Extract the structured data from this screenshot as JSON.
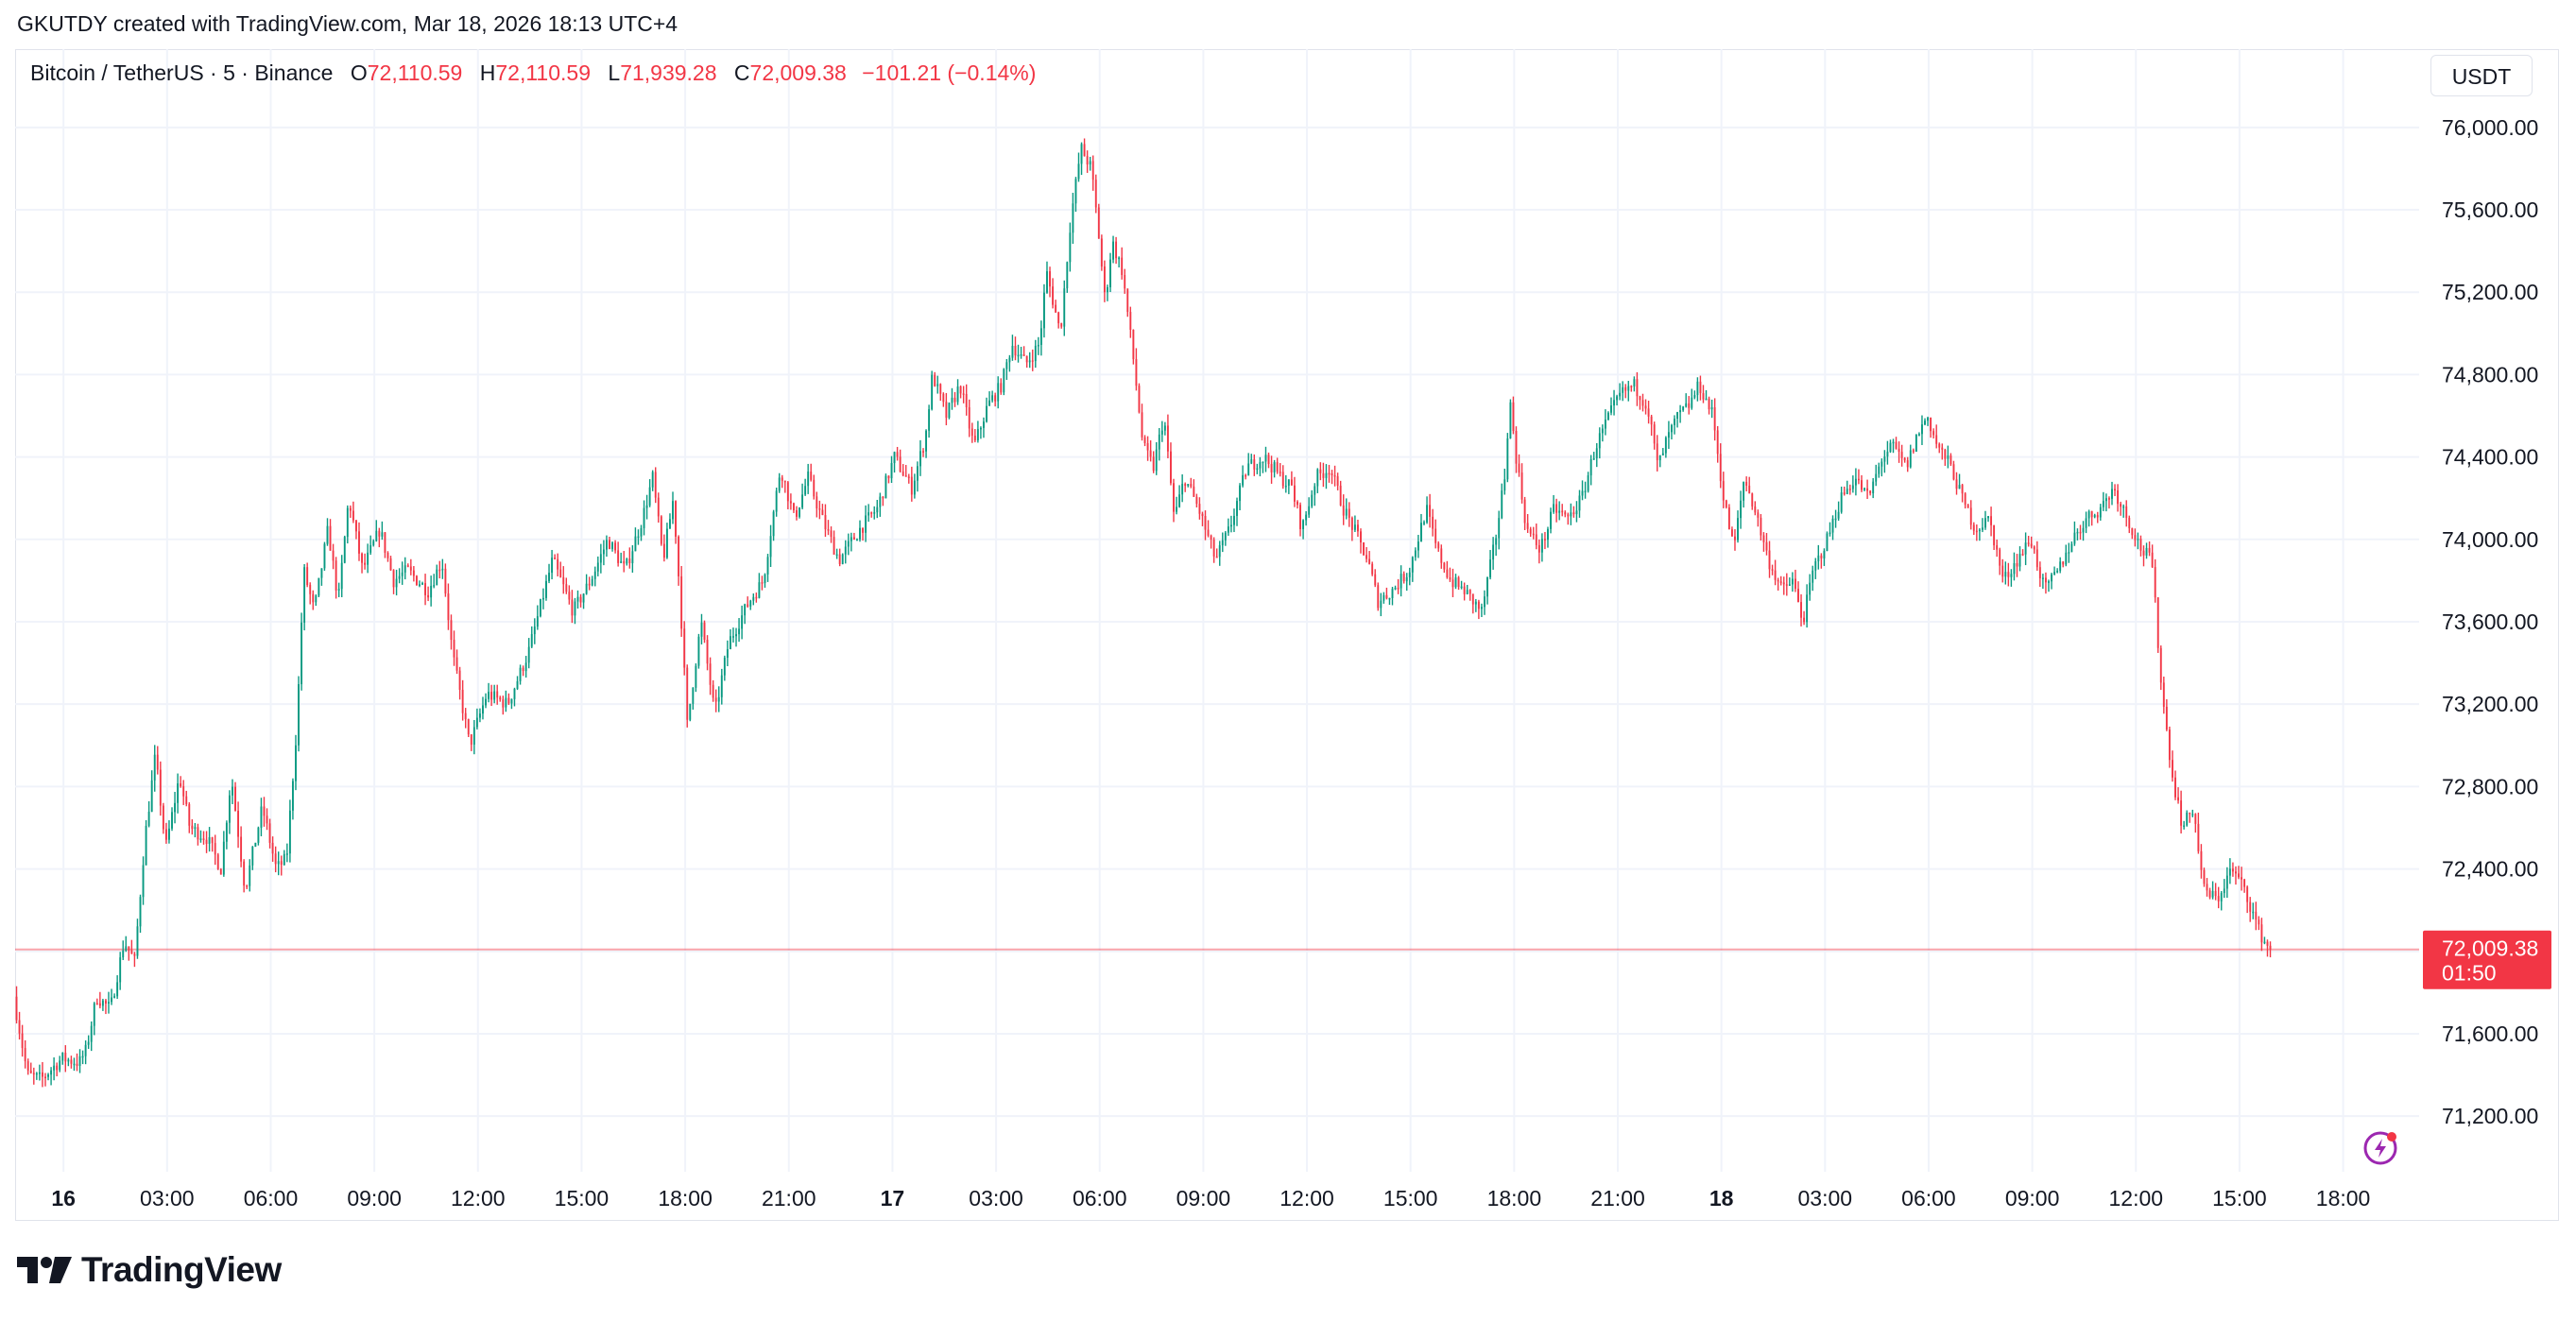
{
  "header": {
    "credit": "GKUTDY created with TradingView.com, Mar 18, 2026 18:13 UTC+4"
  },
  "legend": {
    "symbol": "Bitcoin / TetherUS · 5 · Binance",
    "o_label": "O",
    "open": "72,110.59",
    "h_label": "H",
    "high": "72,110.59",
    "l_label": "L",
    "low": "71,939.28",
    "c_label": "C",
    "close": "72,009.38",
    "change": "−101.21 (−0.14%)"
  },
  "currency_button": "USDT",
  "price_tag": {
    "price": "72,009.38",
    "countdown": "01:50"
  },
  "logo_text": "TradingView",
  "colors": {
    "up": "#089981",
    "down": "#f23645",
    "grid": "#f0f3fa",
    "axis_text": "#131722"
  },
  "chart_data": {
    "type": "candlestick",
    "timeframe": "5",
    "y_axis": {
      "ticks": [
        71200,
        71600,
        72000,
        72400,
        72800,
        73200,
        73600,
        74000,
        74400,
        74800,
        75200,
        75600,
        76000
      ],
      "tick_labels": [
        "71,200.00",
        "71,600.00",
        "72,000.00",
        "72,400.00",
        "72,800.00",
        "73,200.00",
        "73,600.00",
        "74,000.00",
        "74,400.00",
        "74,800.00",
        "75,200.00",
        "75,600.00",
        "76,000.00"
      ],
      "range": [
        70930,
        76380
      ]
    },
    "x_axis": {
      "labels": [
        "16",
        "03:00",
        "06:00",
        "09:00",
        "12:00",
        "15:00",
        "18:00",
        "21:00",
        "17",
        "03:00",
        "06:00",
        "09:00",
        "12:00",
        "15:00",
        "18:00",
        "21:00",
        "18",
        "03:00",
        "06:00",
        "09:00",
        "12:00",
        "15:00",
        "18:00"
      ],
      "label_hours": [
        0,
        3,
        6,
        9,
        12,
        15,
        18,
        21,
        24,
        27,
        30,
        33,
        36,
        39,
        42,
        45,
        48,
        51,
        54,
        57,
        60,
        63,
        66
      ],
      "range_hours": [
        -1.4,
        68.2
      ],
      "label_units": "hours since Mar 16 00:00"
    },
    "grid": true,
    "last_price": 72009.38,
    "price_path": [
      [
        -1.4,
        71780
      ],
      [
        -1.0,
        71400
      ],
      [
        -0.6,
        71380
      ],
      [
        0.0,
        71480
      ],
      [
        0.5,
        71460
      ],
      [
        0.7,
        71520
      ],
      [
        1.0,
        71780
      ],
      [
        1.4,
        71720
      ],
      [
        1.8,
        72050
      ],
      [
        2.1,
        71950
      ],
      [
        2.4,
        72550
      ],
      [
        2.7,
        72950
      ],
      [
        3.0,
        72500
      ],
      [
        3.4,
        72850
      ],
      [
        3.7,
        72600
      ],
      [
        4.2,
        72550
      ],
      [
        4.6,
        72400
      ],
      [
        4.9,
        72850
      ],
      [
        5.3,
        72300
      ],
      [
        5.8,
        72700
      ],
      [
        6.2,
        72400
      ],
      [
        6.5,
        72450
      ],
      [
        6.8,
        73100
      ],
      [
        7.0,
        73850
      ],
      [
        7.3,
        73650
      ],
      [
        7.7,
        74050
      ],
      [
        8.0,
        73700
      ],
      [
        8.3,
        74200
      ],
      [
        8.7,
        73850
      ],
      [
        9.2,
        74050
      ],
      [
        9.6,
        73800
      ],
      [
        10.0,
        73850
      ],
      [
        10.6,
        73750
      ],
      [
        11.0,
        73900
      ],
      [
        11.3,
        73450
      ],
      [
        11.8,
        73000
      ],
      [
        12.3,
        73250
      ],
      [
        12.9,
        73200
      ],
      [
        13.5,
        73450
      ],
      [
        14.2,
        73900
      ],
      [
        14.8,
        73650
      ],
      [
        15.3,
        73800
      ],
      [
        15.8,
        74000
      ],
      [
        16.3,
        73850
      ],
      [
        16.8,
        74100
      ],
      [
        17.1,
        74300
      ],
      [
        17.4,
        73900
      ],
      [
        17.7,
        74200
      ],
      [
        17.9,
        73700
      ],
      [
        18.1,
        73100
      ],
      [
        18.5,
        73600
      ],
      [
        18.9,
        73150
      ],
      [
        19.3,
        73500
      ],
      [
        19.9,
        73700
      ],
      [
        20.3,
        73800
      ],
      [
        20.8,
        74350
      ],
      [
        21.2,
        74100
      ],
      [
        21.6,
        74300
      ],
      [
        22.0,
        74100
      ],
      [
        22.5,
        73900
      ],
      [
        23.1,
        74050
      ],
      [
        23.6,
        74150
      ],
      [
        24.1,
        74400
      ],
      [
        24.6,
        74250
      ],
      [
        25.0,
        74500
      ],
      [
        25.2,
        74800
      ],
      [
        25.6,
        74600
      ],
      [
        26.0,
        74750
      ],
      [
        26.4,
        74450
      ],
      [
        26.8,
        74650
      ],
      [
        27.2,
        74750
      ],
      [
        27.5,
        74950
      ],
      [
        27.9,
        74850
      ],
      [
        28.3,
        74950
      ],
      [
        28.5,
        75300
      ],
      [
        28.9,
        75000
      ],
      [
        29.2,
        75550
      ],
      [
        29.5,
        75900
      ],
      [
        29.8,
        75800
      ],
      [
        30.0,
        75500
      ],
      [
        30.2,
        75150
      ],
      [
        30.4,
        75450
      ],
      [
        30.7,
        75300
      ],
      [
        31.0,
        74900
      ],
      [
        31.3,
        74450
      ],
      [
        31.6,
        74350
      ],
      [
        31.9,
        74600
      ],
      [
        32.2,
        74100
      ],
      [
        32.5,
        74300
      ],
      [
        32.9,
        74150
      ],
      [
        33.4,
        73900
      ],
      [
        33.8,
        74050
      ],
      [
        34.3,
        74350
      ],
      [
        34.8,
        74400
      ],
      [
        35.3,
        74300
      ],
      [
        35.6,
        74250
      ],
      [
        35.9,
        74050
      ],
      [
        36.3,
        74300
      ],
      [
        36.7,
        74350
      ],
      [
        37.1,
        74150
      ],
      [
        37.4,
        74050
      ],
      [
        37.8,
        73900
      ],
      [
        38.1,
        73700
      ],
      [
        38.5,
        73750
      ],
      [
        39.0,
        73850
      ],
      [
        39.5,
        74150
      ],
      [
        39.8,
        73950
      ],
      [
        40.2,
        73800
      ],
      [
        40.6,
        73750
      ],
      [
        41.1,
        73650
      ],
      [
        41.5,
        74000
      ],
      [
        41.8,
        74350
      ],
      [
        41.9,
        74700
      ],
      [
        42.1,
        74400
      ],
      [
        42.4,
        74050
      ],
      [
        42.8,
        73950
      ],
      [
        43.2,
        74150
      ],
      [
        43.6,
        74100
      ],
      [
        44.0,
        74200
      ],
      [
        44.4,
        74450
      ],
      [
        44.8,
        74600
      ],
      [
        45.1,
        74700
      ],
      [
        45.5,
        74750
      ],
      [
        45.9,
        74650
      ],
      [
        46.2,
        74350
      ],
      [
        46.5,
        74500
      ],
      [
        46.8,
        74600
      ],
      [
        47.1,
        74650
      ],
      [
        47.4,
        74750
      ],
      [
        47.8,
        74600
      ],
      [
        48.1,
        74200
      ],
      [
        48.4,
        73950
      ],
      [
        48.7,
        74300
      ],
      [
        49.0,
        74150
      ],
      [
        49.4,
        73900
      ],
      [
        49.8,
        73750
      ],
      [
        50.1,
        73800
      ],
      [
        50.4,
        73600
      ],
      [
        50.7,
        73850
      ],
      [
        51.1,
        74000
      ],
      [
        51.5,
        74200
      ],
      [
        51.9,
        74300
      ],
      [
        52.3,
        74200
      ],
      [
        52.7,
        74400
      ],
      [
        53.0,
        74450
      ],
      [
        53.4,
        74350
      ],
      [
        53.7,
        74500
      ],
      [
        54.0,
        74600
      ],
      [
        54.3,
        74450
      ],
      [
        54.7,
        74350
      ],
      [
        55.0,
        74200
      ],
      [
        55.4,
        74050
      ],
      [
        55.8,
        74100
      ],
      [
        56.2,
        73800
      ],
      [
        56.6,
        73900
      ],
      [
        57.0,
        74000
      ],
      [
        57.4,
        73750
      ],
      [
        57.8,
        73850
      ],
      [
        58.2,
        74000
      ],
      [
        58.6,
        74100
      ],
      [
        59.0,
        74150
      ],
      [
        59.4,
        74250
      ],
      [
        59.8,
        74100
      ],
      [
        60.2,
        73950
      ],
      [
        60.5,
        73900
      ],
      [
        60.8,
        73250
      ],
      [
        61.1,
        72850
      ],
      [
        61.4,
        72600
      ],
      [
        61.7,
        72700
      ],
      [
        62.0,
        72300
      ],
      [
        62.4,
        72250
      ],
      [
        62.8,
        72400
      ],
      [
        63.2,
        72300
      ],
      [
        63.6,
        72100
      ],
      [
        63.9,
        72009
      ]
    ]
  }
}
